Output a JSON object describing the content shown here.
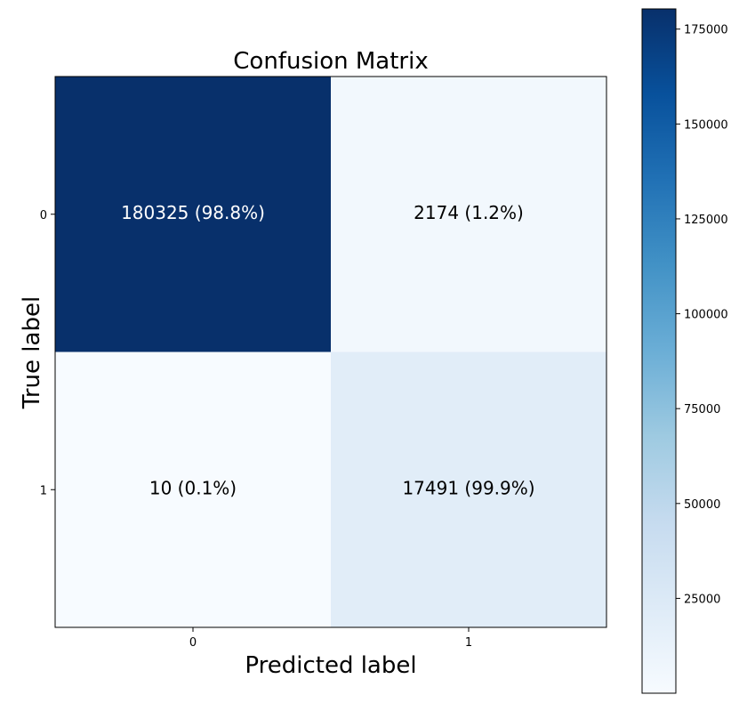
{
  "chart_data": {
    "type": "heatmap",
    "title": "Confusion Matrix",
    "xlabel": "Predicted label",
    "ylabel": "True label",
    "x_categories": [
      "0",
      "1"
    ],
    "y_categories": [
      "0",
      "1"
    ],
    "values": [
      [
        180325,
        2174
      ],
      [
        10,
        17491
      ]
    ],
    "cell_labels": [
      [
        "180325 (98.8%)",
        "2174 (1.2%)"
      ],
      [
        "10 (0.1%)",
        "17491 (99.9%)"
      ]
    ],
    "colormap": "Blues",
    "color_range": [
      10,
      180325
    ],
    "colorbar_ticks": [
      25000,
      50000,
      75000,
      100000,
      125000,
      150000,
      175000
    ],
    "colors": {
      "cell_00": "#08306b",
      "cell_01": "#f2f8fd",
      "cell_10": "#f7fbff",
      "cell_11": "#e1edf8",
      "dark_text": "#000000",
      "light_text": "#ffffff"
    }
  }
}
